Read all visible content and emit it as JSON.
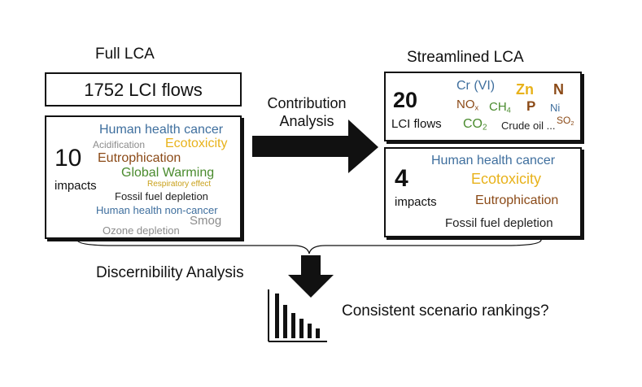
{
  "colors": {
    "blue": "#3f6f9e",
    "gold": "#e8b21b",
    "brown": "#8b4a17",
    "green": "#4a8b2e",
    "gray": "#8c8c8c",
    "dark": "#333333",
    "black": "#111111"
  },
  "full_lca": {
    "title": "Full LCA",
    "flows_label": "1752 LCI flows",
    "impacts_count": "10",
    "impacts_label": "impacts",
    "impact_words": {
      "human_health_cancer": "Human health cancer",
      "acidification": "Acidification",
      "ecotoxicity": "Ecotoxicity",
      "eutrophication": "Eutrophication",
      "global_warming": "Global Warming",
      "respiratory_effect": "Respiratory effect",
      "fossil_fuel_depletion": "Fossil fuel depletion",
      "human_health_non_cancer": "Human health non-cancer",
      "smog": "Smog",
      "ozone_depletion": "Ozone depletion"
    }
  },
  "contribution": {
    "line1": "Contribution",
    "line2": "Analysis"
  },
  "streamlined_lca": {
    "title": "Streamlined LCA",
    "flows_count": "20",
    "flows_label": "LCI flows",
    "flow_words": {
      "cr": "Cr (VI)",
      "zn": "Zn",
      "n": "N",
      "no": "NO",
      "no_sub": "x",
      "ch": "CH",
      "ch_sub": "4",
      "p": "P",
      "ni": "Ni",
      "co": "CO",
      "co_sub": "2",
      "crude": "Crude oil ...",
      "so": "SO",
      "so_sub": "2"
    },
    "impacts_count": "4",
    "impacts_label": "impacts",
    "impact_words": {
      "human_health_cancer": "Human health cancer",
      "ecotoxicity": "Ecotoxicity",
      "eutrophication": "Eutrophication",
      "fossil_fuel_depletion": "Fossil fuel depletion"
    }
  },
  "discernibility_label": "Discernibility Analysis",
  "rankings_label": "Consistent scenario rankings?"
}
